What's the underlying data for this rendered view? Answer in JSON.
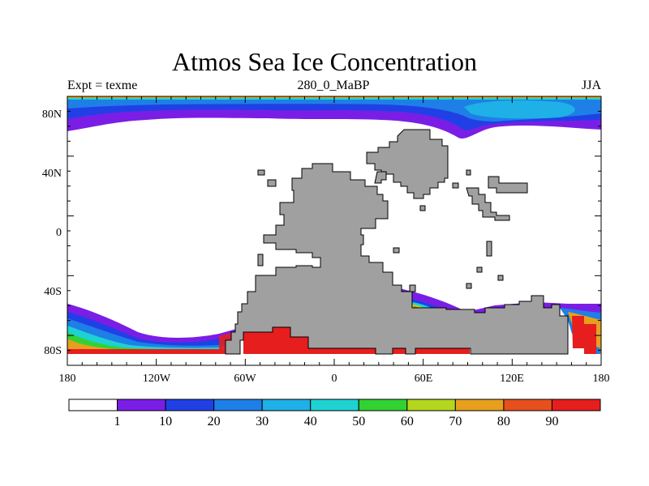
{
  "title": "Atmos Sea Ice Concentration",
  "left_label": "Expt = texme",
  "center_label": "280_0_MaBP",
  "right_label": "JJA",
  "y_axis": {
    "ticks": [
      "80N",
      "40N",
      "0",
      "40S",
      "80S"
    ]
  },
  "x_axis": {
    "ticks": [
      "180",
      "120W",
      "60W",
      "0",
      "60E",
      "120E",
      "180"
    ]
  },
  "colorbar": {
    "colors": [
      "#ffffff",
      "#7a1ee6",
      "#2040e6",
      "#1e7fe6",
      "#1eb0e6",
      "#1ed2d2",
      "#32d232",
      "#b4d61e",
      "#e6a01e",
      "#e6501e",
      "#e61e1e"
    ],
    "labels": [
      "1",
      "10",
      "20",
      "30",
      "40",
      "50",
      "60",
      "70",
      "80",
      "90"
    ]
  },
  "land_color": "#a0a0a0"
}
